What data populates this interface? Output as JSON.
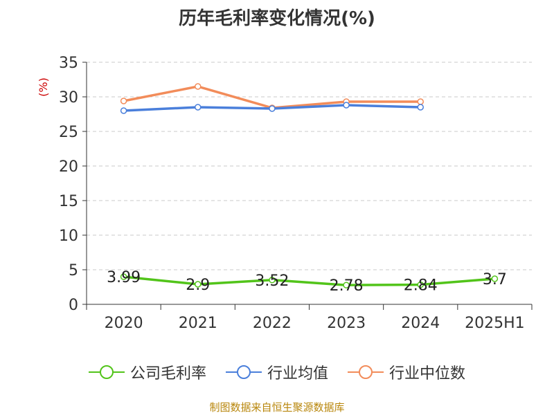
{
  "chart_data": {
    "type": "line",
    "title": "历年毛利率变化情况(%)",
    "ylabel": "(%)",
    "xlabel": "",
    "categories": [
      "2020",
      "2021",
      "2022",
      "2023",
      "2024",
      "2025H1"
    ],
    "ylim": [
      0,
      35
    ],
    "yticks": [
      0,
      5,
      10,
      15,
      20,
      25,
      30,
      35
    ],
    "grid": true,
    "legend_position": "bottom",
    "series": [
      {
        "name": "公司毛利率",
        "color": "#52c41a",
        "values": [
          3.99,
          2.9,
          3.52,
          2.78,
          2.84,
          3.7
        ],
        "show_labels": true
      },
      {
        "name": "行业均值",
        "color": "#4a7fdb",
        "values": [
          28.0,
          28.5,
          28.3,
          28.8,
          28.5,
          null
        ],
        "show_labels": false
      },
      {
        "name": "行业中位数",
        "color": "#f28c5a",
        "values": [
          29.4,
          31.5,
          28.4,
          29.3,
          29.3,
          null
        ],
        "show_labels": false
      }
    ]
  },
  "footer": "制图数据来自恒生聚源数据库"
}
